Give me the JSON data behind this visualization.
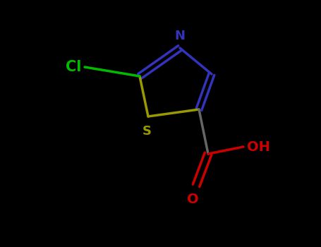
{
  "background_color": "#000000",
  "bond_width": 2.5,
  "N_color": "#3333bb",
  "S_color": "#888800",
  "Cl_color": "#00bb00",
  "O_color": "#cc0000",
  "label_N": "N",
  "label_S": "S",
  "label_Cl": "Cl",
  "label_OH": "OH",
  "label_O": "O",
  "ring_bond_color": "#3333bb",
  "s_bond_color": "#999900"
}
